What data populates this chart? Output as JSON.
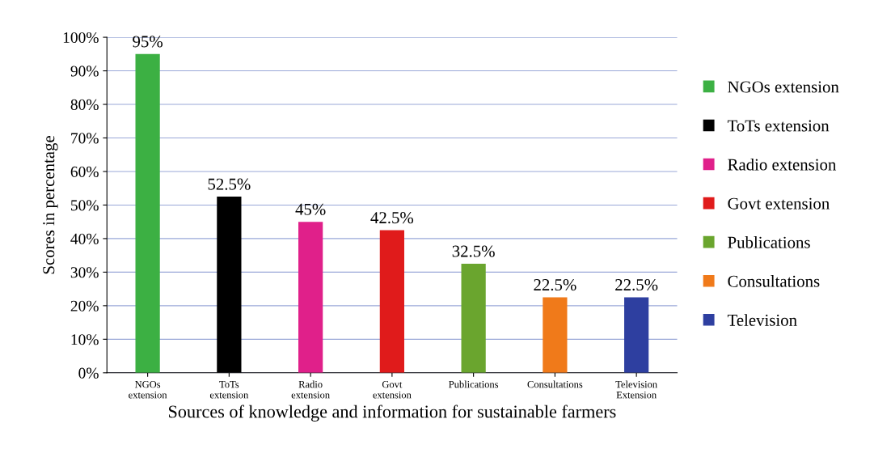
{
  "chart_data": {
    "type": "bar",
    "xlabel": "Sources of knowledge and information for sustainable farmers",
    "ylabel": "Scores in percentage",
    "categories": [
      "NGOs\nextension",
      "ToTs\nextension",
      "Radio\nextension",
      "Govt\nextension",
      "Publications",
      "Consultations",
      "Television\nExtension"
    ],
    "series": [
      {
        "name": "NGOs extension",
        "color": "#3cb043",
        "values": [
          95,
          null,
          null,
          null,
          null,
          null,
          null
        ],
        "value_labels": [
          "95%",
          null,
          null,
          null,
          null,
          null,
          null
        ]
      },
      {
        "name": "ToTs extension",
        "color": "#000000",
        "values": [
          null,
          52.5,
          null,
          null,
          null,
          null,
          null
        ],
        "value_labels": [
          null,
          "52.5%",
          null,
          null,
          null,
          null,
          null
        ]
      },
      {
        "name": "Radio extension",
        "color": "#e0208a",
        "values": [
          null,
          null,
          45,
          null,
          null,
          null,
          null
        ],
        "value_labels": [
          null,
          null,
          "45%",
          null,
          null,
          null,
          null
        ]
      },
      {
        "name": "Govt extension",
        "color": "#e01b1b",
        "values": [
          null,
          null,
          null,
          42.5,
          null,
          null,
          null
        ],
        "value_labels": [
          null,
          null,
          null,
          "42.5%",
          null,
          null,
          null
        ]
      },
      {
        "name": "Publications",
        "color": "#6aa52e",
        "values": [
          null,
          null,
          null,
          null,
          32.5,
          null,
          null
        ],
        "value_labels": [
          null,
          null,
          null,
          null,
          "32.5%",
          null,
          null
        ]
      },
      {
        "name": "Consultations",
        "color": "#f07a1a",
        "values": [
          null,
          null,
          null,
          null,
          null,
          22.5,
          null
        ],
        "value_labels": [
          null,
          null,
          null,
          null,
          null,
          "22.5%",
          null
        ]
      },
      {
        "name": "Television",
        "color": "#2e3fa0",
        "values": [
          null,
          null,
          null,
          null,
          null,
          null,
          22.5
        ],
        "value_labels": [
          null,
          null,
          null,
          null,
          null,
          null,
          "22.5%"
        ]
      }
    ],
    "ylim": [
      0,
      100
    ],
    "yticks": [
      {
        "value": 0,
        "label": "0%"
      },
      {
        "value": 10,
        "label": "10%"
      },
      {
        "value": 20,
        "label": "20%"
      },
      {
        "value": 30,
        "label": "30%"
      },
      {
        "value": 40,
        "label": "40%"
      },
      {
        "value": 50,
        "label": "50%"
      },
      {
        "value": 60,
        "label": "60%"
      },
      {
        "value": 70,
        "label": "70%"
      },
      {
        "value": 80,
        "label": "80%"
      },
      {
        "value": 90,
        "label": "90%"
      },
      {
        "value": 100,
        "label": "100%"
      }
    ],
    "grid": "y",
    "legend": "right"
  }
}
